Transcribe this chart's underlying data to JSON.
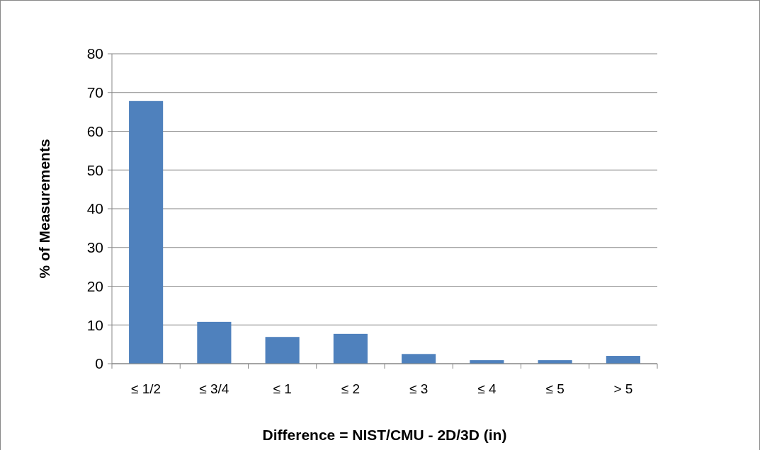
{
  "chart_data": {
    "type": "bar",
    "xlabel": "Difference = NIST/CMU -  2D/3D (in)",
    "ylabel": "% of Measurements",
    "categories": [
      "≤ 1/2",
      "≤ 3/4",
      "≤ 1",
      "≤ 2",
      "≤ 3",
      "≤ 4",
      "≤ 5",
      "> 5"
    ],
    "values": [
      67.8,
      10.8,
      6.9,
      7.7,
      2.5,
      0.9,
      0.9,
      2.0
    ],
    "color": "#4f81bd",
    "ylim": [
      0,
      80
    ],
    "yticks": [
      0,
      10,
      20,
      30,
      40,
      50,
      60,
      70,
      80
    ],
    "grid": "y"
  }
}
